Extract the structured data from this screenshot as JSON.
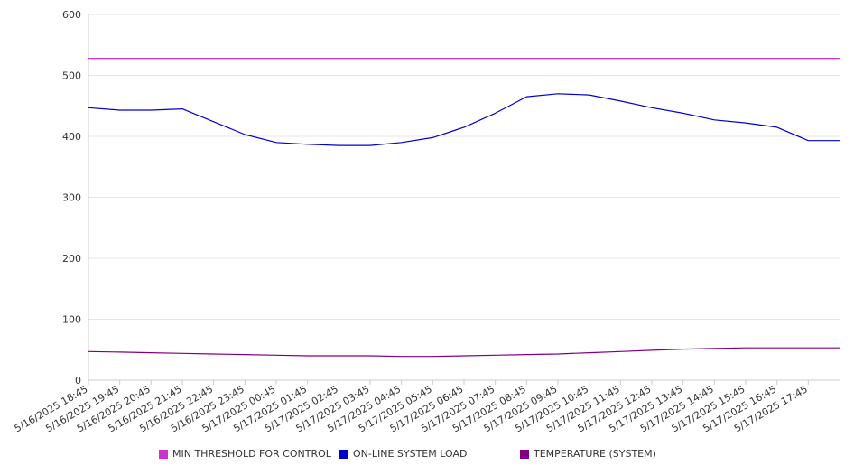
{
  "chart_data": {
    "type": "line",
    "ylim": [
      0,
      600
    ],
    "yticks": [
      0,
      100,
      200,
      300,
      400,
      500,
      600
    ],
    "grid": "horizontal",
    "legend_placement": "bottom",
    "categories": [
      "5/16/2025 18:45",
      "5/16/2025 19:45",
      "5/16/2025 20:45",
      "5/16/2025 21:45",
      "5/16/2025 22:45",
      "5/16/2025 23:45",
      "5/17/2025 00:45",
      "5/17/2025 01:45",
      "5/17/2025 02:45",
      "5/17/2025 03:45",
      "5/17/2025 04:45",
      "5/17/2025 05:45",
      "5/17/2025 06:45",
      "5/17/2025 07:45",
      "5/17/2025 08:45",
      "5/17/2025 09:45",
      "5/17/2025 10:45",
      "5/17/2025 11:45",
      "5/17/2025 12:45",
      "5/17/2025 13:45",
      "5/17/2025 14:45",
      "5/17/2025 15:45",
      "5/17/2025 16:45",
      "5/17/2025 17:45"
    ],
    "series": [
      {
        "name": "MIN THRESHOLD FOR CONTROL",
        "color": "#cc33cc",
        "values": [
          528,
          528,
          528,
          528,
          528,
          528,
          528,
          528,
          528,
          528,
          528,
          528,
          528,
          528,
          528,
          528,
          528,
          528,
          528,
          528,
          528,
          528,
          528,
          528
        ]
      },
      {
        "name": "ON-LINE SYSTEM LOAD",
        "color": "#0000cc",
        "values": [
          447,
          443,
          443,
          445,
          424,
          403,
          390,
          387,
          385,
          385,
          390,
          398,
          415,
          438,
          465,
          470,
          468,
          458,
          447,
          438,
          427,
          422,
          415,
          393
        ]
      },
      {
        "name": "TEMPERATURE (SYSTEM)",
        "color": "#800080",
        "values": [
          47,
          46,
          45,
          44,
          43,
          42,
          41,
          40,
          40,
          40,
          39,
          39,
          40,
          41,
          42,
          43,
          45,
          47,
          49,
          51,
          52,
          53,
          53,
          53
        ]
      }
    ]
  }
}
